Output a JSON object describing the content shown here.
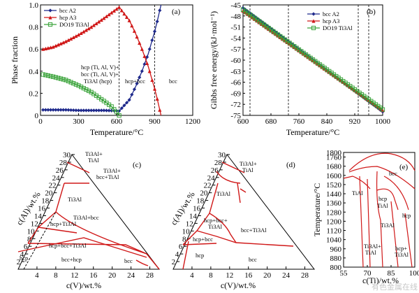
{
  "chart_data": [
    {
      "type": "line",
      "panel_label": "(a)",
      "xlabel": "Temperature/°C",
      "ylabel": "Phase fraction",
      "xlim": [
        0,
        1200
      ],
      "ylim": [
        0,
        1.0
      ],
      "xticks": [
        "0",
        "300",
        "600",
        "900",
        "1200"
      ],
      "yticks": [
        "0",
        "0.2",
        "0.4",
        "0.6",
        "0.8",
        "1.0"
      ],
      "vlines_x": [
        620,
        900
      ],
      "series": [
        {
          "name": "bcc A2",
          "color": "#1f2a8c",
          "marker": "diamond",
          "x": [
            20,
            100,
            200,
            300,
            400,
            500,
            620,
            700,
            750,
            800,
            850,
            900,
            920,
            940,
            950
          ],
          "y": [
            0.05,
            0.05,
            0.05,
            0.045,
            0.045,
            0.045,
            0.04,
            0.14,
            0.26,
            0.4,
            0.56,
            0.76,
            0.85,
            0.95,
            1.0
          ]
        },
        {
          "name": "hcp A3",
          "color": "#d01818",
          "marker": "triangle",
          "x": [
            20,
            100,
            200,
            300,
            400,
            500,
            620,
            700,
            750,
            800,
            850,
            900,
            920,
            940,
            950
          ],
          "y": [
            0.6,
            0.62,
            0.67,
            0.73,
            0.8,
            0.88,
            0.98,
            0.86,
            0.74,
            0.6,
            0.44,
            0.24,
            0.15,
            0.05,
            0.0
          ]
        },
        {
          "name": "DO19 Ti3Al",
          "color": "#3aa33a",
          "marker": "square",
          "x": [
            20,
            100,
            200,
            300,
            400,
            500,
            560,
            600,
            620
          ],
          "y": [
            0.37,
            0.35,
            0.32,
            0.27,
            0.21,
            0.13,
            0.08,
            0.03,
            0.0
          ]
        }
      ],
      "annotations": [
        "hcp (Ti, Al, V)+",
        "bcc (Ti, Al, V)+",
        "Ti3Al (hcp)",
        "hcp+bcc",
        "bcc"
      ]
    },
    {
      "type": "line",
      "panel_label": "(b)",
      "xlabel": "Temperature/°C",
      "ylabel": "Gibbs free energy/(kJ·mol⁻¹)",
      "xlim": [
        600,
        1000
      ],
      "ylim": [
        -75,
        -45
      ],
      "xticks": [
        "600",
        "680",
        "760",
        "840",
        "920",
        "1000"
      ],
      "yticks": [
        "-45",
        "-48",
        "-51",
        "-54",
        "-57",
        "-60",
        "-63",
        "-66",
        "-69",
        "-72",
        "-75"
      ],
      "vlines_x": [
        620,
        730,
        930,
        960
      ],
      "series": [
        {
          "name": "bcc A2",
          "color": "#1f2a8c",
          "marker": "diamond",
          "x": [
            600,
            1000
          ],
          "y": [
            -45.8,
            -74.0
          ]
        },
        {
          "name": "hcp A3",
          "color": "#d01818",
          "marker": "triangle",
          "x": [
            600,
            1000
          ],
          "y": [
            -46.6,
            -73.6
          ]
        },
        {
          "name": "DO19 Ti3Al",
          "color": "#3aa33a",
          "marker": "square",
          "x": [
            600,
            1000
          ],
          "y": [
            -46.3,
            -73.4
          ]
        }
      ]
    },
    {
      "type": "ternary",
      "panel_label": "(c)",
      "xlabel": "c(V)/wt.%",
      "ylabel": "c(Al)/wt.%",
      "xticks": [
        "4",
        "8",
        "12",
        "16",
        "20",
        "24",
        "28"
      ],
      "yticks": [
        "2",
        "4",
        "6",
        "8",
        "10",
        "12",
        "14",
        "16",
        "18",
        "20",
        "22",
        "24",
        "26",
        "28",
        "30"
      ],
      "regions": [
        "Ti3Al+",
        "TiAl",
        "Ti3Al+",
        "bcc+TiAl",
        "Ti3Al",
        "Ti3Al+bcc",
        "hcp+Ti3Al",
        "hcp+bcc+Ti3Al",
        "bcc+hcp",
        "hcp",
        "bcc"
      ]
    },
    {
      "type": "ternary",
      "panel_label": "(d)",
      "xlabel": "c(V)/wt.%",
      "ylabel": "c(Al)/wt.%",
      "xticks": [
        "4",
        "8",
        "12",
        "16",
        "20",
        "24",
        "28"
      ],
      "yticks": [
        "2",
        "4",
        "6",
        "8",
        "10",
        "12",
        "14",
        "16",
        "18",
        "20",
        "22",
        "24",
        "26",
        "28",
        "30"
      ],
      "regions": [
        "Ti3Al+",
        "TiAl",
        "Ti3Al",
        "hcp+bcc+",
        "Ti3Al",
        "bcc+Ti3Al",
        "hcp+bcc",
        "hcp",
        "bcc"
      ]
    },
    {
      "type": "phase-diagram",
      "panel_label": "(e)",
      "xlabel": "c(Ti)/wt.%",
      "ylabel": "Temperature/°C",
      "xlim": [
        55,
        100
      ],
      "ylim": [
        800,
        1800
      ],
      "xticks": [
        "55",
        "70",
        "85",
        "100"
      ],
      "yticks": [
        "800",
        "880",
        "960",
        "1040",
        "1120",
        "1200",
        "1280",
        "1360",
        "1440",
        "1520",
        "1600",
        "1680",
        "1760",
        "1800"
      ],
      "regions": [
        "bcc",
        "TiAl",
        "hcp",
        "TiAl",
        "hcp",
        "Ti3Al",
        "Ti3Al+",
        "TiAl",
        "hcp+",
        "Ti3Al"
      ]
    }
  ],
  "watermark": "有色金属在线"
}
